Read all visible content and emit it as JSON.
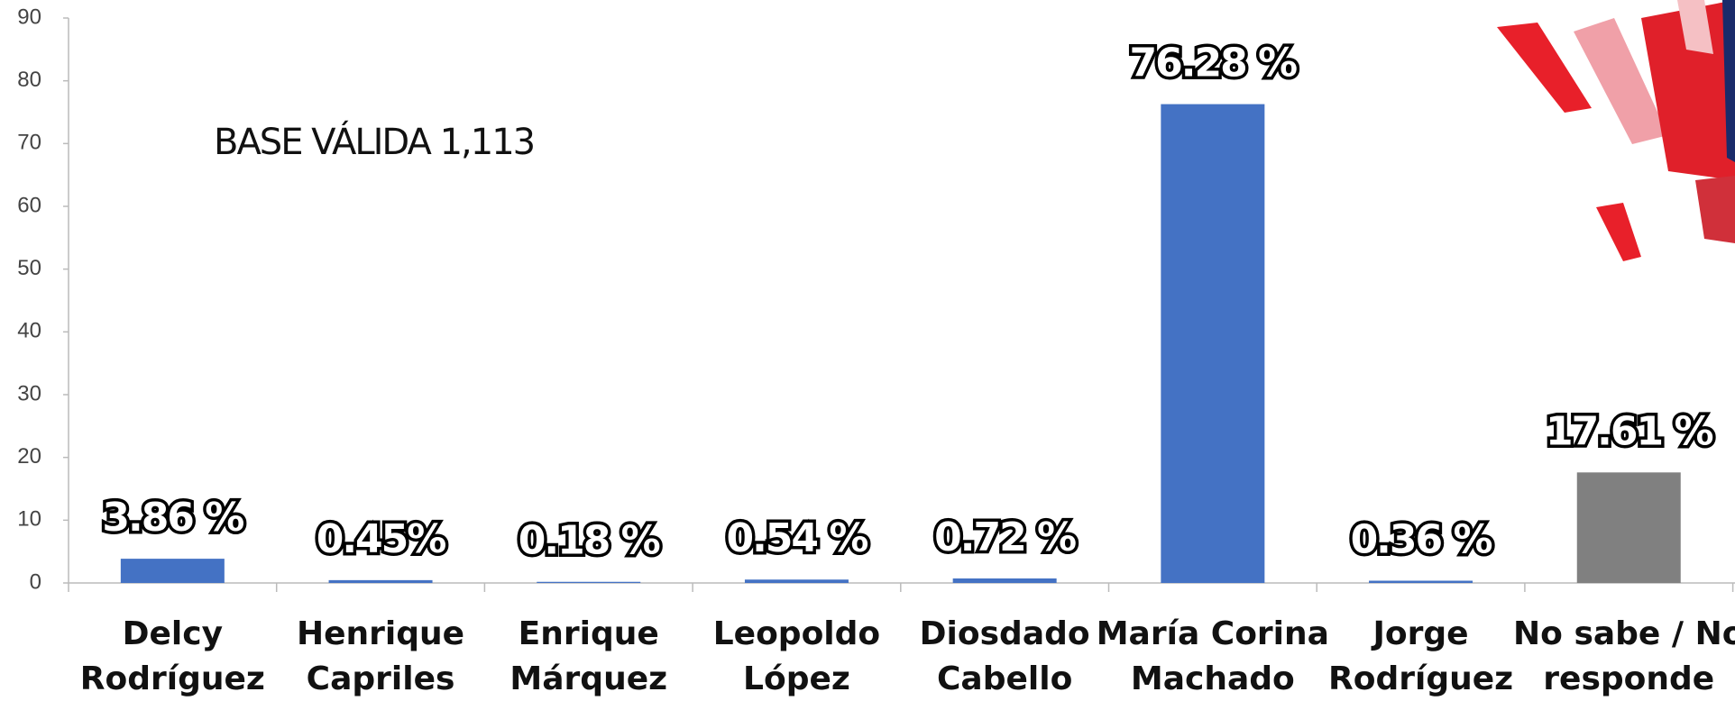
{
  "chart_data": {
    "type": "bar",
    "annotation": "BASE VÁLIDA 1,113",
    "categories": [
      [
        "Delcy",
        "Rodríguez"
      ],
      [
        "Henrique",
        "Capriles"
      ],
      [
        "Enrique",
        "Márquez"
      ],
      [
        "Leopoldo",
        "López"
      ],
      [
        "Diosdado",
        "Cabello"
      ],
      [
        "María Corina",
        "Machado"
      ],
      [
        "Jorge",
        "Rodríguez"
      ],
      [
        "No sabe / No",
        "responde"
      ]
    ],
    "values": [
      3.86,
      0.45,
      0.18,
      0.54,
      0.72,
      76.28,
      0.36,
      17.61
    ],
    "value_labels": [
      "3.86 %",
      "0.45%",
      "0.18 %",
      "0.54 %",
      "0.72 %",
      "76.28 %",
      "0.36 %",
      "17.61 %"
    ],
    "colors": [
      "#4472c4",
      "#4472c4",
      "#4472c4",
      "#4472c4",
      "#4472c4",
      "#4472c4",
      "#4472c4",
      "#808080"
    ],
    "ylim": [
      0,
      90
    ],
    "yticks": [
      0,
      10,
      20,
      30,
      40,
      50,
      60,
      70,
      80,
      90
    ],
    "grid": false
  }
}
